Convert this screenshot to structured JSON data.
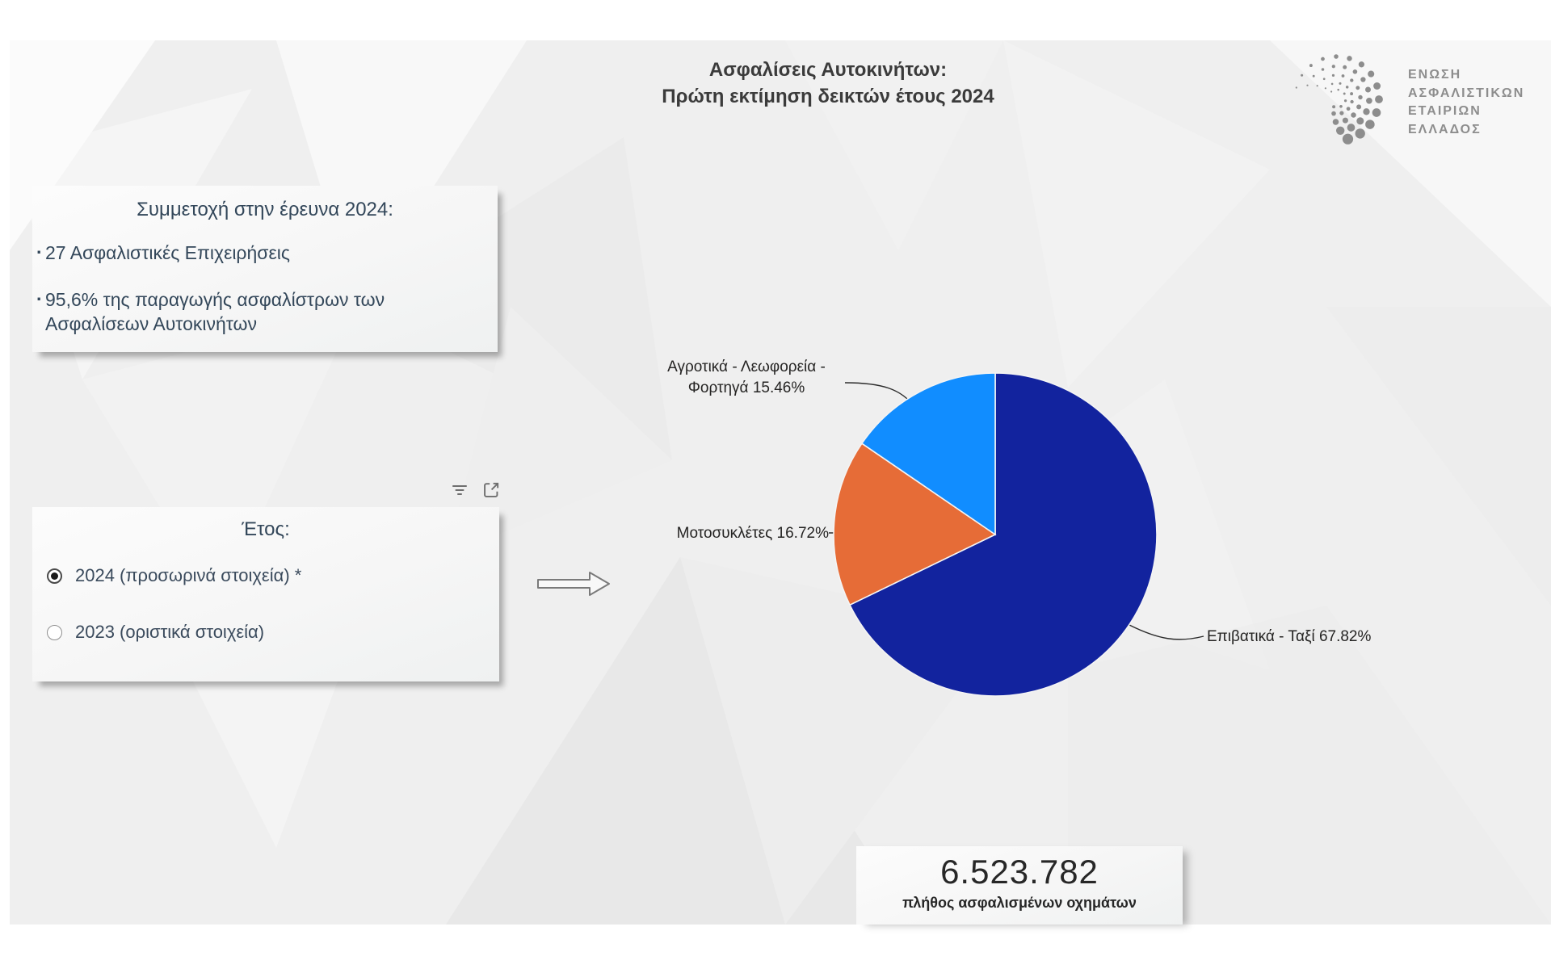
{
  "page": {
    "title_line1": "Ασφαλίσεις Αυτοκινήτων:",
    "title_line2": "Πρώτη εκτίμηση δεικτών έτους 2024"
  },
  "logo": {
    "line1": "ΕΝΩΣΗ",
    "line2": "ΑΣΦΑΛΙΣΤΙΚΩΝ",
    "line3": "ΕΤΑΙΡΙΩΝ",
    "line4": "ΕΛΛΑΔΟΣ",
    "mark": "dot-spiral-logo-icon"
  },
  "participation_box": {
    "title": "Συμμετοχή στην έρευνα 2024:",
    "bullet1": "27 Ασφαλιστικές Επιχειρήσεις",
    "bullet2": "95,6% της παραγωγής ασφαλίστρων των Ασφαλίσεων Αυτοκινήτων"
  },
  "year_filter": {
    "title": "Έτος:",
    "options": [
      {
        "label": "2024 (προσωρινά στοιχεία) *",
        "selected": true
      },
      {
        "label": "2023 (οριστικά στοιχεία)",
        "selected": false
      }
    ],
    "visual_header_icons": [
      "filter-icon",
      "focus-mode-icon"
    ]
  },
  "flow": {
    "icon": "right-arrow-icon"
  },
  "chart_data": {
    "type": "pie",
    "categories": [
      "Επιβατικά - Ταξί",
      "Μοτοσυκλέτες",
      "Αγροτικά - Λεωφορεία - Φορτηγά"
    ],
    "values": [
      67.82,
      16.72,
      15.46
    ],
    "unit": "%",
    "colors": [
      "#12239E",
      "#E66C37",
      "#118DFF"
    ],
    "labels": [
      "Επιβατικά - Ταξί 67.82%",
      "Μοτοσυκλέτες 16.72%",
      "Αγροτικά - Λεωφορεία - Φορτηγά 15.46%"
    ],
    "start_angle_deg": 0,
    "direction": "clockwise",
    "legend": "none",
    "title": ""
  },
  "summary_card": {
    "value": "6.523.782",
    "label": "πλήθος ασφαλισμένων οχημάτων"
  },
  "colors": {
    "canvas_bg": "#efefef",
    "panel_bg": "#f8f8f8",
    "text_dark_slate": "#33475a",
    "label_text": "#252423",
    "logo_gray": "#8d8d8d",
    "slice_passenger_taxi": "#12239E",
    "slice_motorcycles": "#E66C37",
    "slice_agro_bus_truck": "#118DFF"
  }
}
